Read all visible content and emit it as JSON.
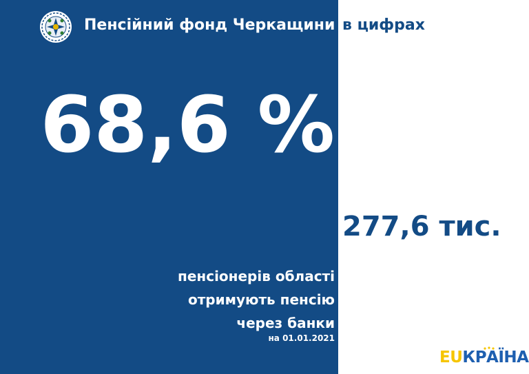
{
  "header": {
    "title_left": "Пенсійний фонд Черкащини",
    "title_right": "в цифрах",
    "logo_icon": "pension-fund-emblem-icon"
  },
  "main": {
    "percentage": "68,6 %",
    "count": "277,6 тис.",
    "description_lines": [
      "пенсіонерів області",
      "отримують пенсію",
      "через банки"
    ],
    "date": "на 01.01.2021"
  },
  "brand": {
    "part1": "EU",
    "part2": "КРАЇНА"
  },
  "colors": {
    "primary_blue": "#134b85",
    "white": "#ffffff",
    "brand_yellow": "#f6c500",
    "brand_blue": "#1e5fb0"
  }
}
